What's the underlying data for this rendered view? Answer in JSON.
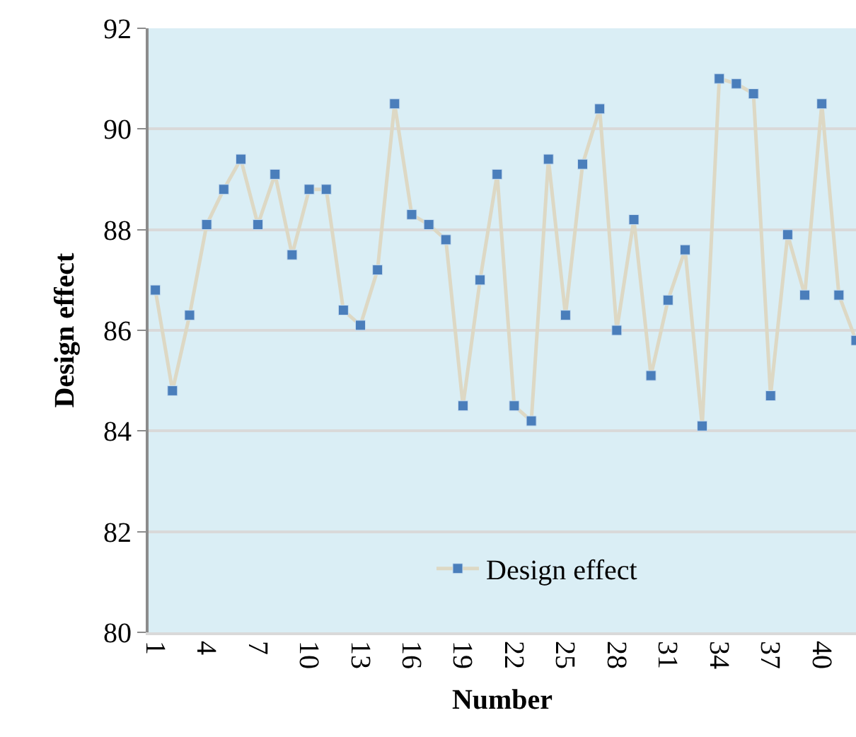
{
  "chart_data": {
    "type": "line",
    "xlabel": "Number",
    "ylabel": "Design effect",
    "categories": [
      "1",
      null,
      null,
      "4",
      null,
      null,
      "7",
      null,
      null,
      "10",
      null,
      null,
      "13",
      null,
      null,
      "16",
      null,
      null,
      "19",
      null,
      null,
      "22",
      null,
      null,
      "25",
      null,
      null,
      "28",
      null,
      null,
      "31",
      null,
      null,
      "34",
      null,
      null,
      "37",
      null,
      null,
      "40",
      null,
      null
    ],
    "series": [
      {
        "name": "Design effect",
        "color": "#4a7ebb",
        "values": [
          86.8,
          84.8,
          86.3,
          88.1,
          88.8,
          89.4,
          88.1,
          89.1,
          87.5,
          88.8,
          88.8,
          86.4,
          86.1,
          87.2,
          90.5,
          88.3,
          88.1,
          87.8,
          84.5,
          87.0,
          89.1,
          84.5,
          84.2,
          89.4,
          86.3,
          89.3,
          90.4,
          86.0,
          88.2,
          85.1,
          86.6,
          87.6,
          84.1,
          91.0,
          90.9,
          90.7,
          84.7,
          87.9,
          86.7,
          90.5,
          86.7,
          85.8
        ]
      }
    ],
    "ylim": [
      80,
      92
    ],
    "yticks": [
      80,
      82,
      84,
      86,
      88,
      90,
      92
    ],
    "grid": "y",
    "legend": "bottom",
    "marker": "square",
    "line_style": "solid"
  }
}
